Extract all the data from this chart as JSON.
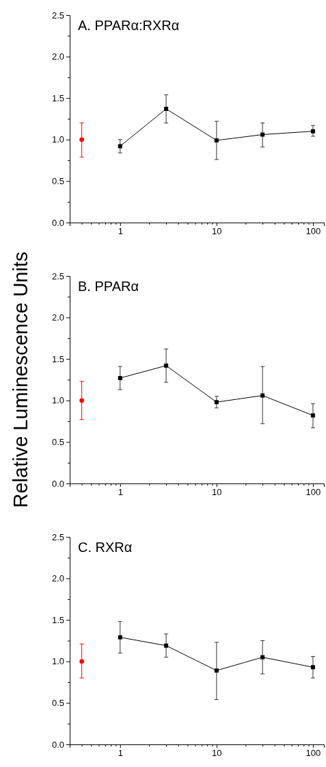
{
  "chart_data": [
    {
      "type": "line",
      "title": "A. PPARα:RXRα",
      "log": "x",
      "xlim": [
        0.3,
        130
      ],
      "ylim": [
        0,
        2.5
      ],
      "xticks": [
        {
          "value": 0.4,
          "label": null
        },
        {
          "value": 0.5,
          "label": null
        },
        {
          "value": 0.6,
          "label": null
        },
        {
          "value": 0.7,
          "label": null
        },
        {
          "value": 0.8,
          "label": null
        },
        {
          "value": 0.9,
          "label": null
        },
        1,
        {
          "value": 2,
          "label": null
        },
        {
          "value": 3,
          "label": null
        },
        {
          "value": 4,
          "label": null
        },
        {
          "value": 5,
          "label": null
        },
        {
          "value": 6,
          "label": null
        },
        {
          "value": 7,
          "label": null
        },
        {
          "value": 8,
          "label": null
        },
        {
          "value": 9,
          "label": null
        },
        10,
        {
          "value": 20,
          "label": null
        },
        {
          "value": 30,
          "label": null
        },
        {
          "value": 40,
          "label": null
        },
        {
          "value": 50,
          "label": null
        },
        {
          "value": 60,
          "label": null
        },
        {
          "value": 70,
          "label": null
        },
        {
          "value": 80,
          "label": null
        },
        {
          "value": 90,
          "label": null
        },
        100
      ],
      "yticks": [
        {
          "value": 0,
          "label": "0.0"
        },
        {
          "value": 0.25,
          "label": null
        },
        {
          "value": 0.5,
          "label": "0.5"
        },
        {
          "value": 0.75,
          "label": null
        },
        {
          "value": 1,
          "label": "1.0"
        },
        {
          "value": 1.25,
          "label": null
        },
        {
          "value": 1.5,
          "label": "1.5"
        },
        {
          "value": 1.75,
          "label": null
        },
        {
          "value": 2,
          "label": "2.0"
        },
        {
          "value": 2.25,
          "label": null
        },
        {
          "value": 2.5,
          "label": "2.5"
        }
      ],
      "series": [
        {
          "type": "scatter",
          "color": "#ff0000",
          "marker": "circle",
          "x": [
            0.4
          ],
          "values": [
            1.0
          ],
          "errors": [
            [
              0.79,
              1.2
            ]
          ]
        },
        {
          "color": "#000000",
          "marker": "square",
          "line_style": "solid",
          "x": [
            1,
            3,
            10,
            30,
            100
          ],
          "values": [
            0.92,
            1.37,
            0.99,
            1.06,
            1.1
          ],
          "errors": [
            [
              0.84,
              1.0
            ],
            [
              1.2,
              1.54
            ],
            [
              0.76,
              1.22
            ],
            [
              0.91,
              1.2
            ],
            [
              1.04,
              1.17
            ]
          ]
        }
      ]
    },
    {
      "type": "line",
      "title": "B. PPARα",
      "ylabel": "Relative Luminescence Units",
      "log": "x",
      "xlim": [
        0.3,
        130
      ],
      "ylim": [
        0,
        2.5
      ],
      "xticks": [
        {
          "value": 0.4,
          "label": null
        },
        {
          "value": 0.5,
          "label": null
        },
        {
          "value": 0.6,
          "label": null
        },
        {
          "value": 0.7,
          "label": null
        },
        {
          "value": 0.8,
          "label": null
        },
        {
          "value": 0.9,
          "label": null
        },
        1,
        {
          "value": 2,
          "label": null
        },
        {
          "value": 3,
          "label": null
        },
        {
          "value": 4,
          "label": null
        },
        {
          "value": 5,
          "label": null
        },
        {
          "value": 6,
          "label": null
        },
        {
          "value": 7,
          "label": null
        },
        {
          "value": 8,
          "label": null
        },
        {
          "value": 9,
          "label": null
        },
        10,
        {
          "value": 20,
          "label": null
        },
        {
          "value": 30,
          "label": null
        },
        {
          "value": 40,
          "label": null
        },
        {
          "value": 50,
          "label": null
        },
        {
          "value": 60,
          "label": null
        },
        {
          "value": 70,
          "label": null
        },
        {
          "value": 80,
          "label": null
        },
        {
          "value": 90,
          "label": null
        },
        100
      ],
      "yticks": [
        {
          "value": 0,
          "label": "0.0"
        },
        {
          "value": 0.25,
          "label": null
        },
        {
          "value": 0.5,
          "label": "0.5"
        },
        {
          "value": 0.75,
          "label": null
        },
        {
          "value": 1,
          "label": "1.0"
        },
        {
          "value": 1.25,
          "label": null
        },
        {
          "value": 1.5,
          "label": "1.5"
        },
        {
          "value": 1.75,
          "label": null
        },
        {
          "value": 2,
          "label": "2.0"
        },
        {
          "value": 2.25,
          "label": null
        },
        {
          "value": 2.5,
          "label": "2.5"
        }
      ],
      "series": [
        {
          "type": "scatter",
          "color": "#ff0000",
          "marker": "circle",
          "x": [
            0.4
          ],
          "values": [
            1.0
          ],
          "errors": [
            [
              0.77,
              1.23
            ]
          ]
        },
        {
          "color": "#000000",
          "marker": "square",
          "line_style": "solid",
          "x": [
            1,
            3,
            10,
            30,
            100
          ],
          "values": [
            1.27,
            1.42,
            0.98,
            1.06,
            0.82
          ],
          "errors": [
            [
              1.13,
              1.41
            ],
            [
              1.22,
              1.62
            ],
            [
              0.91,
              1.05
            ],
            [
              0.72,
              1.41
            ],
            [
              0.67,
              0.96
            ]
          ]
        }
      ]
    },
    {
      "type": "line",
      "title": "C. RXRα",
      "log": "x",
      "xlim": [
        0.3,
        130
      ],
      "ylim": [
        0,
        2.5
      ],
      "xticks": [
        {
          "value": 0.4,
          "label": null
        },
        {
          "value": 0.5,
          "label": null
        },
        {
          "value": 0.6,
          "label": null
        },
        {
          "value": 0.7,
          "label": null
        },
        {
          "value": 0.8,
          "label": null
        },
        {
          "value": 0.9,
          "label": null
        },
        1,
        {
          "value": 2,
          "label": null
        },
        {
          "value": 3,
          "label": null
        },
        {
          "value": 4,
          "label": null
        },
        {
          "value": 5,
          "label": null
        },
        {
          "value": 6,
          "label": null
        },
        {
          "value": 7,
          "label": null
        },
        {
          "value": 8,
          "label": null
        },
        {
          "value": 9,
          "label": null
        },
        10,
        {
          "value": 20,
          "label": null
        },
        {
          "value": 30,
          "label": null
        },
        {
          "value": 40,
          "label": null
        },
        {
          "value": 50,
          "label": null
        },
        {
          "value": 60,
          "label": null
        },
        {
          "value": 70,
          "label": null
        },
        {
          "value": 80,
          "label": null
        },
        {
          "value": 90,
          "label": null
        },
        100
      ],
      "yticks": [
        {
          "value": 0,
          "label": "0.0"
        },
        {
          "value": 0.25,
          "label": null
        },
        {
          "value": 0.5,
          "label": "0.5"
        },
        {
          "value": 0.75,
          "label": null
        },
        {
          "value": 1,
          "label": "1.0"
        },
        {
          "value": 1.25,
          "label": null
        },
        {
          "value": 1.5,
          "label": "1.5"
        },
        {
          "value": 1.75,
          "label": null
        },
        {
          "value": 2,
          "label": "2.0"
        },
        {
          "value": 2.25,
          "label": null
        },
        {
          "value": 2.5,
          "label": "2.5"
        }
      ],
      "series": [
        {
          "type": "scatter",
          "color": "#ff0000",
          "marker": "circle",
          "x": [
            0.4
          ],
          "values": [
            1.0
          ],
          "errors": [
            [
              0.8,
              1.21
            ]
          ]
        },
        {
          "color": "#000000",
          "marker": "square",
          "line_style": "solid",
          "x": [
            1,
            3,
            10,
            30,
            100
          ],
          "values": [
            1.29,
            1.19,
            0.89,
            1.05,
            0.93
          ],
          "errors": [
            [
              1.1,
              1.48
            ],
            [
              1.05,
              1.33
            ],
            [
              0.54,
              1.23
            ],
            [
              0.85,
              1.25
            ],
            [
              0.8,
              1.06
            ]
          ]
        }
      ]
    }
  ]
}
